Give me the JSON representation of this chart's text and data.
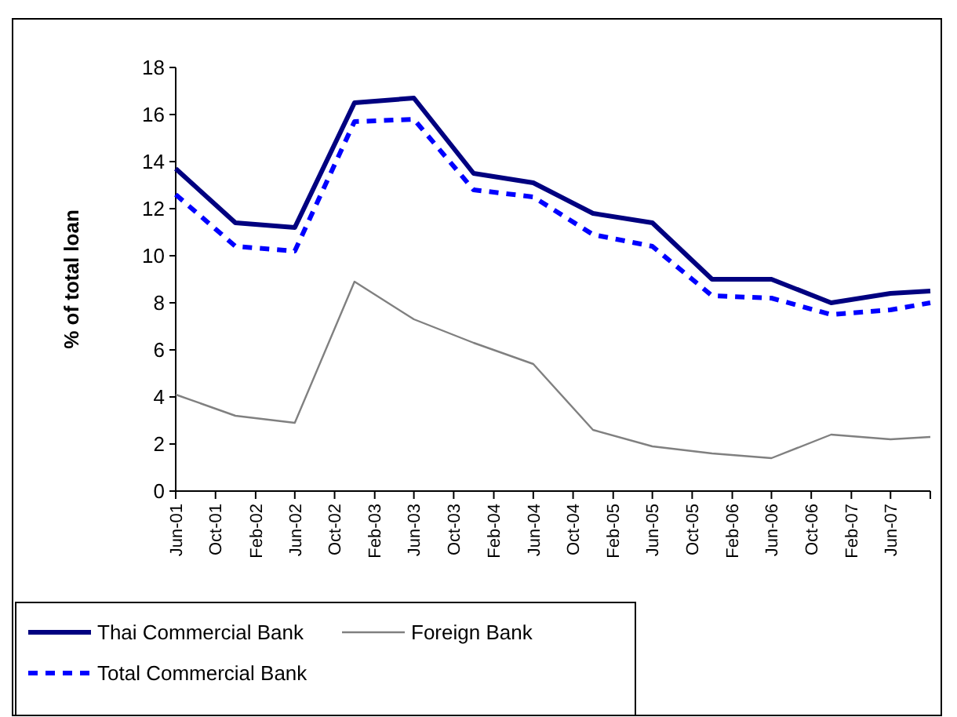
{
  "chart_data": {
    "type": "line",
    "ylabel": "% of total loan",
    "x": [
      "2001-06",
      "2001-12",
      "2002-06",
      "2002-12",
      "2003-06",
      "2003-12",
      "2004-06",
      "2004-12",
      "2005-06",
      "2005-12",
      "2006-06",
      "2006-12",
      "2007-06",
      "2007-10"
    ],
    "series": [
      {
        "name": "Thai Commercial Bank",
        "color": "#000080",
        "line_style": "solid",
        "values": [
          13.7,
          11.4,
          11.2,
          16.5,
          16.7,
          13.5,
          13.1,
          11.8,
          11.4,
          9.0,
          9.0,
          8.0,
          8.4,
          8.5
        ]
      },
      {
        "name": "Foreign Bank",
        "color": "#808080",
        "line_style": "solid",
        "values": [
          4.1,
          3.2,
          2.9,
          8.9,
          7.3,
          6.3,
          5.4,
          2.6,
          1.9,
          1.6,
          1.4,
          2.4,
          2.2,
          2.3
        ]
      },
      {
        "name": "Total Commercial Bank",
        "color": "#0000ff",
        "line_style": "dashed",
        "values": [
          12.6,
          10.4,
          10.2,
          15.7,
          15.8,
          12.8,
          12.5,
          10.9,
          10.4,
          8.3,
          8.2,
          7.5,
          7.7,
          8.0
        ]
      }
    ],
    "xlim": [
      "2001-06",
      "2007-10"
    ],
    "xticks": [
      {
        "value": "2001-06",
        "label": "Jun-01"
      },
      {
        "value": "2001-10",
        "label": "Oct-01"
      },
      {
        "value": "2002-02",
        "label": "Feb-02"
      },
      {
        "value": "2002-06",
        "label": "Jun-02"
      },
      {
        "value": "2002-10",
        "label": "Oct-02"
      },
      {
        "value": "2003-02",
        "label": "Feb-03"
      },
      {
        "value": "2003-06",
        "label": "Jun-03"
      },
      {
        "value": "2003-10",
        "label": "Oct-03"
      },
      {
        "value": "2004-02",
        "label": "Feb-04"
      },
      {
        "value": "2004-06",
        "label": "Jun-04"
      },
      {
        "value": "2004-10",
        "label": "Oct-04"
      },
      {
        "value": "2005-02",
        "label": "Feb-05"
      },
      {
        "value": "2005-06",
        "label": "Jun-05"
      },
      {
        "value": "2005-10",
        "label": "Oct-05"
      },
      {
        "value": "2006-02",
        "label": "Feb-06"
      },
      {
        "value": "2006-06",
        "label": "Jun-06"
      },
      {
        "value": "2006-10",
        "label": "Oct-06"
      },
      {
        "value": "2007-02",
        "label": "Feb-07"
      },
      {
        "value": "2007-06",
        "label": "Jun-07"
      },
      {
        "value": "2007-10",
        "label": null
      }
    ],
    "ylim": [
      0,
      18
    ],
    "yticks": [
      0,
      2,
      4,
      6,
      8,
      10,
      12,
      14,
      16,
      18
    ],
    "grid": false,
    "legend": "bottom",
    "marker": "none"
  }
}
